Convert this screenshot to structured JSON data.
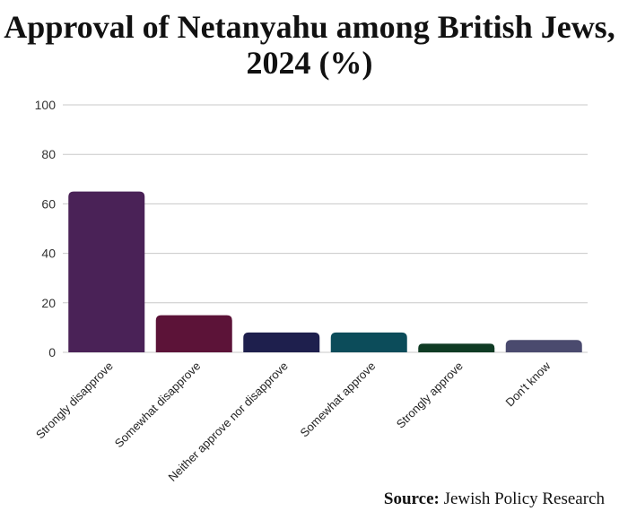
{
  "chart_data": {
    "type": "bar",
    "title": "Approval of Netanyahu among British Jews, 2024 (%)",
    "categories": [
      "Strongly disapprove",
      "Somewhat disapprove",
      "Neither approve nor disapprove",
      "Somewhat approve",
      "Strongly approve",
      "Don't know"
    ],
    "values": [
      65,
      15,
      8,
      8,
      3.5,
      5
    ],
    "colors": [
      "#4a2257",
      "#5c1338",
      "#1e1f4d",
      "#0c4c5a",
      "#0f3b24",
      "#4a4a6e"
    ],
    "ylim": [
      0,
      100
    ],
    "yticks": [
      0,
      20,
      40,
      60,
      80,
      100
    ],
    "xlabel": "",
    "ylabel": "",
    "grid": true,
    "legend": "none"
  },
  "source": {
    "label": "Source:",
    "text": "Jewish Policy Research"
  }
}
